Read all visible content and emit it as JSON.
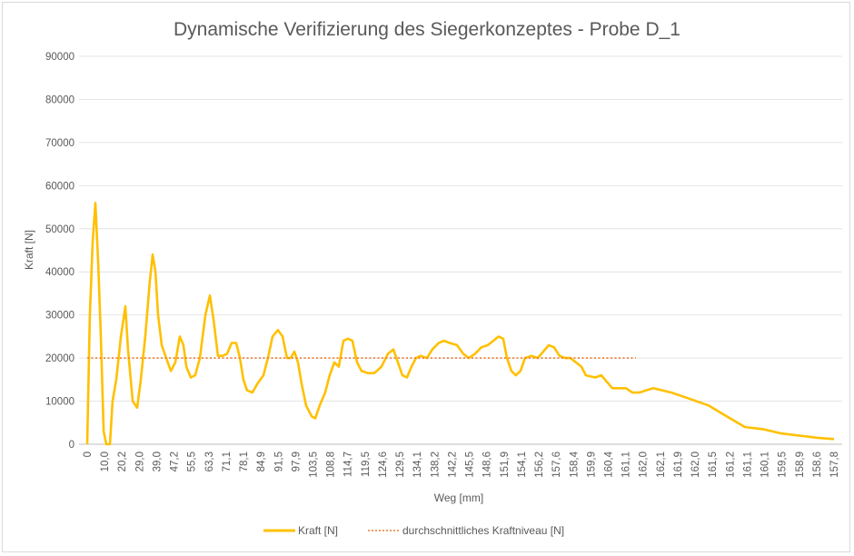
{
  "chart_data": {
    "type": "line",
    "title": "Dynamische Verifizierung des Siegerkonzeptes - Probe D_1",
    "xlabel": "Weg [mm]",
    "ylabel": "Kraft [N]",
    "ylim": [
      0,
      90000
    ],
    "yticks": [
      "0",
      "10000",
      "20000",
      "30000",
      "40000",
      "50000",
      "60000",
      "70000",
      "80000",
      "90000"
    ],
    "grid": true,
    "legend_position": "bottom",
    "categories": [
      "0",
      "10,0",
      "20,2",
      "29,0",
      "39,0",
      "47,2",
      "55,5",
      "63,3",
      "71,1",
      "78,1",
      "84,9",
      "91,5",
      "97,9",
      "103,5",
      "108,8",
      "114,7",
      "119,5",
      "124,6",
      "129,5",
      "134,1",
      "138,2",
      "142,2",
      "145,5",
      "148,6",
      "151,9",
      "154,1",
      "156,2",
      "157,6",
      "158,4",
      "159,9",
      "160,4",
      "161,1",
      "162,0",
      "162,1",
      "161,9",
      "162,0",
      "161,5",
      "161,2",
      "161,1",
      "160,1",
      "159,5",
      "158,9",
      "158,6",
      "157,8"
    ],
    "series": [
      {
        "name": "Kraft [N]",
        "color": "#FFC000",
        "style": "solid",
        "points_category_index": [
          [
            0,
            0
          ],
          [
            0.16,
            30000
          ],
          [
            0.33,
            47000
          ],
          [
            0.49,
            56000
          ],
          [
            0.66,
            42000
          ],
          [
            0.82,
            25000
          ],
          [
            0.99,
            3000
          ],
          [
            1.15,
            0
          ],
          [
            1.37,
            0
          ],
          [
            1.53,
            10000
          ],
          [
            1.75,
            15000
          ],
          [
            2.03,
            25000
          ],
          [
            2.3,
            32000
          ],
          [
            2.46,
            22000
          ],
          [
            2.74,
            10000
          ],
          [
            3.01,
            8500
          ],
          [
            3.23,
            15000
          ],
          [
            3.5,
            25000
          ],
          [
            3.78,
            38000
          ],
          [
            3.94,
            44000
          ],
          [
            4.11,
            40000
          ],
          [
            4.27,
            30000
          ],
          [
            4.49,
            23000
          ],
          [
            4.76,
            20000
          ],
          [
            5.04,
            17000
          ],
          [
            5.31,
            19000
          ],
          [
            5.58,
            25000
          ],
          [
            5.8,
            23000
          ],
          [
            5.97,
            18000
          ],
          [
            6.24,
            15500
          ],
          [
            6.51,
            16000
          ],
          [
            6.79,
            20000
          ],
          [
            7.12,
            30000
          ],
          [
            7.39,
            34500
          ],
          [
            7.61,
            29000
          ],
          [
            7.88,
            20500
          ],
          [
            8.16,
            20500
          ],
          [
            8.43,
            21000
          ],
          [
            8.7,
            23500
          ],
          [
            8.98,
            23500
          ],
          [
            9.2,
            20000
          ],
          [
            9.41,
            15000
          ],
          [
            9.63,
            12500
          ],
          [
            9.96,
            12000
          ],
          [
            10.24,
            14000
          ],
          [
            10.62,
            16000
          ],
          [
            10.89,
            20000
          ],
          [
            11.17,
            25000
          ],
          [
            11.49,
            26500
          ],
          [
            11.77,
            25000
          ],
          [
            12.04,
            20000
          ],
          [
            12.26,
            20000
          ],
          [
            12.48,
            21500
          ],
          [
            12.7,
            19000
          ],
          [
            12.92,
            14000
          ],
          [
            13.19,
            9000
          ],
          [
            13.52,
            6500
          ],
          [
            13.74,
            6000
          ],
          [
            14.01,
            9000
          ],
          [
            14.34,
            12000
          ],
          [
            14.61,
            16000
          ],
          [
            14.89,
            19000
          ],
          [
            15.16,
            18000
          ],
          [
            15.44,
            24000
          ],
          [
            15.71,
            24500
          ],
          [
            15.98,
            24000
          ],
          [
            16.26,
            19000
          ],
          [
            16.53,
            17000
          ],
          [
            16.91,
            16500
          ],
          [
            17.3,
            16500
          ],
          [
            17.73,
            18000
          ],
          [
            18.12,
            21000
          ],
          [
            18.45,
            22000
          ],
          [
            18.72,
            19000
          ],
          [
            18.99,
            16000
          ],
          [
            19.27,
            15500
          ],
          [
            19.54,
            18000
          ],
          [
            19.81,
            20000
          ],
          [
            20.09,
            20500
          ],
          [
            20.47,
            20000
          ],
          [
            20.8,
            22000
          ],
          [
            21.18,
            23500
          ],
          [
            21.51,
            24000
          ],
          [
            21.84,
            23500
          ],
          [
            22.28,
            23000
          ],
          [
            22.66,
            21000
          ],
          [
            22.99,
            20000
          ],
          [
            23.37,
            21000
          ],
          [
            23.75,
            22500
          ],
          [
            24.14,
            23000
          ],
          [
            24.47,
            24000
          ],
          [
            24.79,
            25000
          ],
          [
            25.07,
            24500
          ],
          [
            25.29,
            20000
          ],
          [
            25.56,
            17000
          ],
          [
            25.83,
            16000
          ],
          [
            26.11,
            17000
          ],
          [
            26.38,
            20000
          ],
          [
            26.77,
            20500
          ],
          [
            27.15,
            20000
          ],
          [
            27.48,
            21500
          ],
          [
            27.81,
            23000
          ],
          [
            28.13,
            22500
          ],
          [
            28.46,
            20500
          ],
          [
            28.79,
            20000
          ],
          [
            29.12,
            20000
          ],
          [
            29.45,
            19000
          ],
          [
            29.78,
            18000
          ],
          [
            30.05,
            16000
          ],
          [
            30.6,
            15500
          ],
          [
            30.98,
            16000
          ],
          [
            31.31,
            14500
          ],
          [
            31.64,
            13000
          ],
          [
            32.46,
            13000
          ],
          [
            32.85,
            12000
          ],
          [
            33.28,
            12000
          ],
          [
            33.67,
            12500
          ],
          [
            34.11,
            13000
          ],
          [
            35.2,
            12000
          ],
          [
            36.34,
            10500
          ],
          [
            37.44,
            9000
          ],
          [
            38.53,
            6500
          ],
          [
            39.63,
            4000
          ],
          [
            40.72,
            3500
          ],
          [
            41.82,
            2500
          ],
          [
            42.91,
            2000
          ],
          [
            44.01,
            1500
          ],
          [
            45,
            1200
          ]
        ]
      },
      {
        "name": "durchschnittliches Kraftniveau [N]",
        "color": "#ED7D31",
        "style": "dotted",
        "points_category_index": [
          [
            0,
            20000
          ],
          [
            33.06,
            20000
          ]
        ]
      }
    ]
  }
}
